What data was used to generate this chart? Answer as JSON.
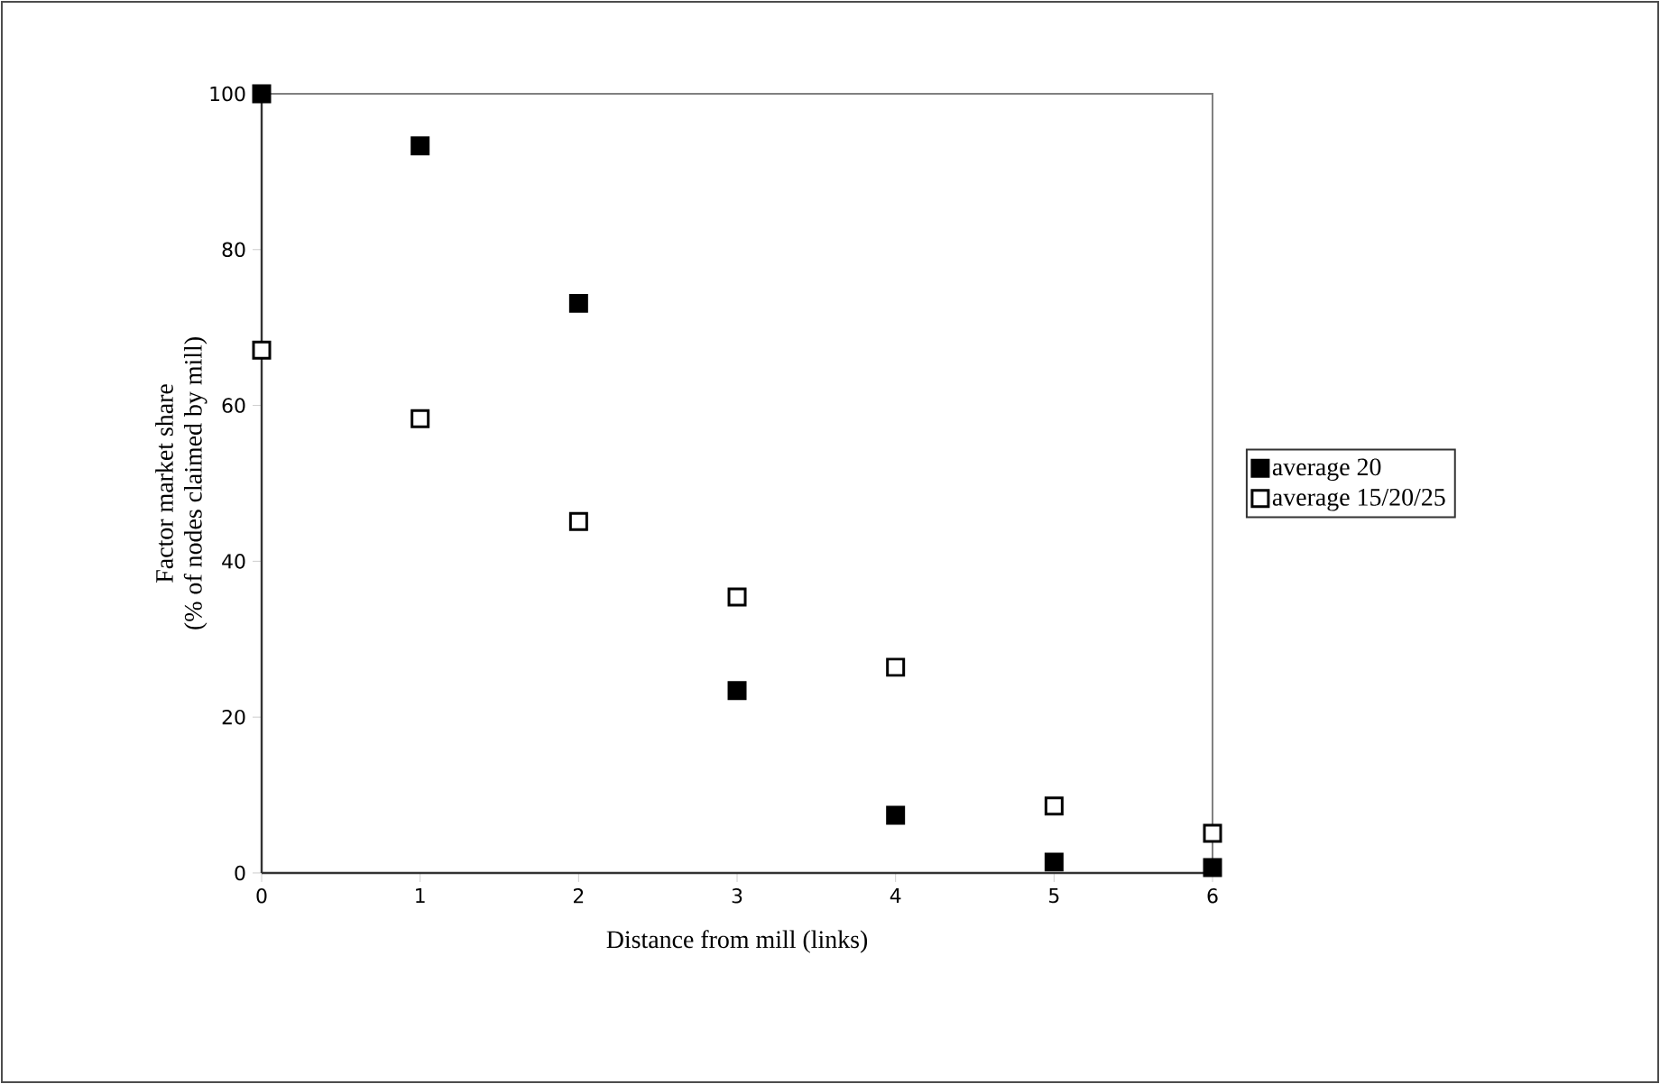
{
  "chart_data": {
    "type": "scatter",
    "xlabel": "Distance from mill (links)",
    "ylabel": "Factor market share\n(% of nodes claimed by mill)",
    "x": [
      0,
      1,
      2,
      3,
      4,
      5,
      6
    ],
    "series": [
      {
        "name": "average 20",
        "color": "#000000",
        "values": [
          100,
          93.3,
          73.1,
          23.4,
          7.4,
          1.4,
          0.7
        ]
      },
      {
        "name": "average 15/20/25",
        "color": "#ffffff",
        "values": [
          67.1,
          58.3,
          45.1,
          35.4,
          26.4,
          8.6,
          5.1
        ]
      }
    ],
    "xlim": [
      0,
      6
    ],
    "ylim": [
      0,
      100
    ],
    "xticks": [
      0,
      1,
      2,
      3,
      4,
      5,
      6
    ],
    "yticks": [
      0,
      20,
      40,
      60,
      80,
      100
    ],
    "marker": "square",
    "grid": false,
    "legend": "right"
  }
}
